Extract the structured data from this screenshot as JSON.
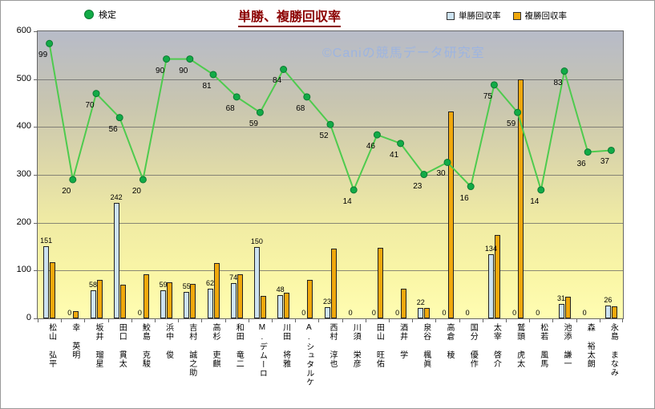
{
  "figure": {
    "title": "単勝、複勝回収率",
    "watermark": "©Caniの競馬データ研究室"
  },
  "legend": {
    "kentei": "検定",
    "tansho": "単勝回収率",
    "fukusho": "複勝回収率"
  },
  "colors": {
    "title": "#8b0000",
    "tansho_fill": "#cde3f1",
    "fukusho_fill": "#f0a80c",
    "bar_edge": "#222222",
    "line": "#4ecb4e",
    "marker_fill": "#12ab47",
    "marker_edge": "#0c7a33",
    "watermark": "#9db4e0",
    "grid": "#646464"
  },
  "chart_data": {
    "type": "bar",
    "title": "単勝、複勝回収率",
    "categories": [
      "松山 弘平",
      "幸 英明",
      "坂井 瑠星",
      "田口 貫太",
      "鮫島 克駿",
      "浜中 俊",
      "吉村 誠之助",
      "高杉 吏麒",
      "和田 竜二",
      "M.デムーロ",
      "川田 将雅",
      "A.シュタルケ",
      "西村 淳也",
      "川須 栄彦",
      "田山 旺佑",
      "酒井 学",
      "泉谷 楓眞",
      "高倉 稜",
      "国分 優作",
      "太宰 啓介",
      "鷲頭 虎太",
      "松若 風馬",
      "池添 謙一",
      "森 裕太朗",
      "永島 まなみ"
    ],
    "series": [
      {
        "name": "単勝回収率",
        "type": "bar",
        "values": [
          151,
          0,
          58,
          242,
          0,
          59,
          55,
          62,
          74,
          150,
          48,
          0,
          23,
          0,
          0,
          0,
          22,
          0,
          0,
          134,
          0,
          0,
          31,
          0,
          26
        ]
      },
      {
        "name": "複勝回収率",
        "type": "bar",
        "values": [
          118,
          15,
          80,
          70,
          93,
          75,
          72,
          115,
          93,
          47,
          53,
          80,
          145,
          0,
          148,
          62,
          22,
          432,
          0,
          175,
          500,
          0,
          45,
          0,
          25
        ]
      },
      {
        "name": "検定",
        "type": "line",
        "values": [
          99,
          20,
          70,
          56,
          20,
          90,
          90,
          81,
          68,
          59,
          84,
          68,
          52,
          14,
          46,
          41,
          23,
          30,
          16,
          75,
          59,
          14,
          83,
          36,
          37
        ],
        "plot_transform": {
          "offset": 218,
          "scale": 3.6
        }
      }
    ],
    "xlabel": "",
    "ylabel": "",
    "ylim": [
      0,
      600
    ],
    "yticks": [
      0,
      100,
      200,
      300,
      400,
      500,
      600
    ],
    "grid": true,
    "legend_position": "top",
    "data_labels": {
      "単勝回収率": true,
      "検定": true
    }
  }
}
